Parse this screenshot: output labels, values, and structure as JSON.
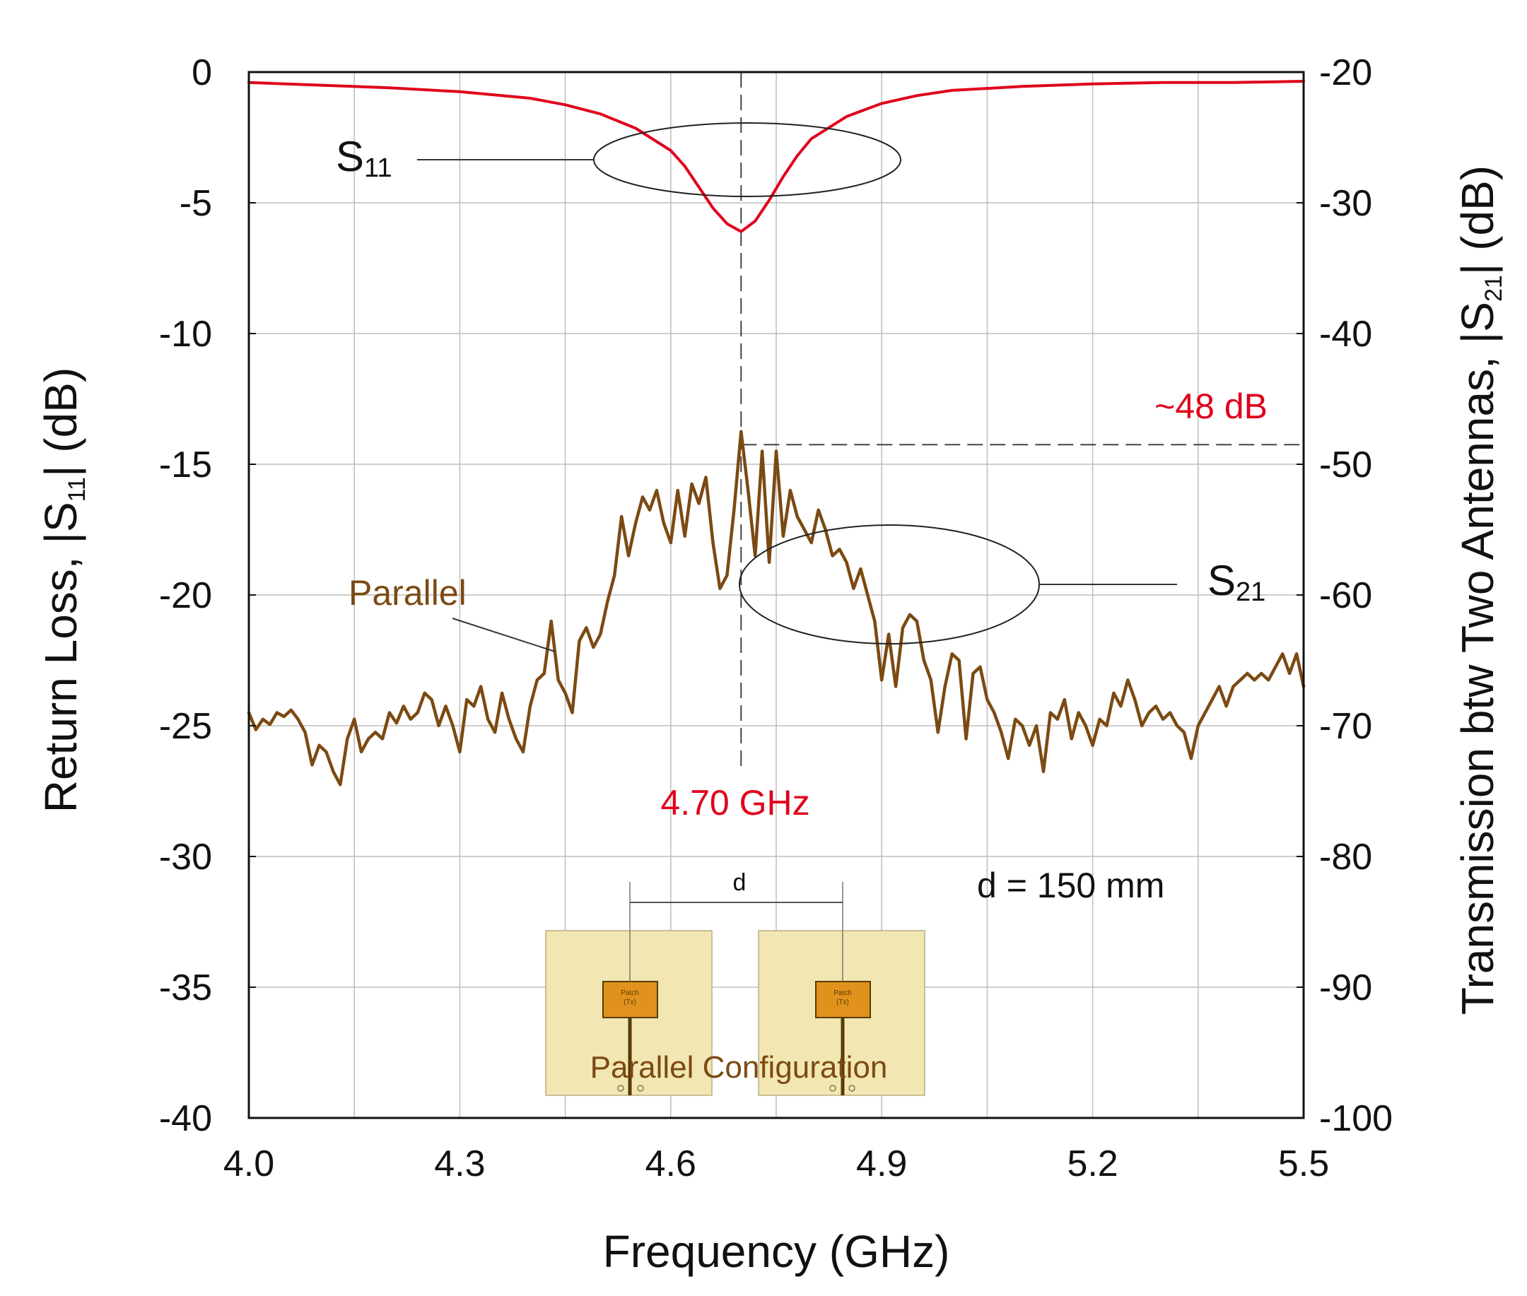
{
  "chart_data": {
    "type": "line",
    "title": "",
    "xlabel": "Frequency (GHz)",
    "ylabel_left": {
      "main": "Return Loss, |S",
      "sub": "11",
      "tail": "| (dB)"
    },
    "ylabel_right": {
      "main": "Transmission btw Two Antennas, |S",
      "sub": "21",
      "tail": "| (dB)"
    },
    "xlim": [
      4.0,
      5.5
    ],
    "ylim_left": [
      -40,
      0
    ],
    "ylim_right": [
      -100,
      -20
    ],
    "grid": true,
    "x_ticks": [
      "4.0",
      "4.3",
      "4.6",
      "4.9",
      "5.2",
      "5.5"
    ],
    "y_left_ticks": [
      "0",
      "-5",
      "-10",
      "-15",
      "-20",
      "-25",
      "-30",
      "-35",
      "-40"
    ],
    "y_right_ticks": [
      "-20",
      "-30",
      "-40",
      "-50",
      "-60",
      "-70",
      "-80",
      "-90",
      "-100"
    ],
    "series": [
      {
        "name": "S11",
        "axis": "left",
        "color": "#e0001b",
        "x": [
          4.0,
          4.1,
          4.2,
          4.3,
          4.4,
          4.45,
          4.5,
          4.55,
          4.6,
          4.62,
          4.64,
          4.66,
          4.68,
          4.7,
          4.72,
          4.74,
          4.76,
          4.78,
          4.8,
          4.85,
          4.9,
          4.95,
          5.0,
          5.1,
          5.2,
          5.3,
          5.4,
          5.5
        ],
        "values": [
          -0.4,
          -0.5,
          -0.6,
          -0.75,
          -1.0,
          -1.25,
          -1.6,
          -2.15,
          -3.0,
          -3.6,
          -4.4,
          -5.2,
          -5.8,
          -6.1,
          -5.7,
          -4.9,
          -4.0,
          -3.2,
          -2.55,
          -1.7,
          -1.2,
          -0.9,
          -0.7,
          -0.55,
          -0.45,
          -0.4,
          -0.4,
          -0.35
        ]
      },
      {
        "name": "S21 (Parallel)",
        "axis": "right",
        "color": "#7b4a12",
        "x": [
          4.0,
          4.01,
          4.02,
          4.03,
          4.04,
          4.05,
          4.06,
          4.07,
          4.08,
          4.09,
          4.1,
          4.11,
          4.12,
          4.13,
          4.14,
          4.15,
          4.16,
          4.17,
          4.18,
          4.19,
          4.2,
          4.21,
          4.22,
          4.23,
          4.24,
          4.25,
          4.26,
          4.27,
          4.28,
          4.29,
          4.3,
          4.31,
          4.32,
          4.33,
          4.34,
          4.35,
          4.36,
          4.37,
          4.38,
          4.39,
          4.4,
          4.41,
          4.42,
          4.43,
          4.44,
          4.45,
          4.46,
          4.47,
          4.48,
          4.49,
          4.5,
          4.51,
          4.52,
          4.53,
          4.54,
          4.55,
          4.56,
          4.57,
          4.58,
          4.59,
          4.6,
          4.61,
          4.62,
          4.63,
          4.64,
          4.65,
          4.66,
          4.67,
          4.68,
          4.69,
          4.7,
          4.71,
          4.72,
          4.73,
          4.74,
          4.75,
          4.76,
          4.77,
          4.78,
          4.79,
          4.8,
          4.81,
          4.82,
          4.83,
          4.84,
          4.85,
          4.86,
          4.87,
          4.88,
          4.89,
          4.9,
          4.91,
          4.92,
          4.93,
          4.94,
          4.95,
          4.96,
          4.97,
          4.98,
          4.99,
          5.0,
          5.01,
          5.02,
          5.03,
          5.04,
          5.05,
          5.06,
          5.07,
          5.08,
          5.09,
          5.1,
          5.11,
          5.12,
          5.13,
          5.14,
          5.15,
          5.16,
          5.17,
          5.18,
          5.19,
          5.2,
          5.21,
          5.22,
          5.23,
          5.24,
          5.25,
          5.26,
          5.27,
          5.28,
          5.29,
          5.3,
          5.31,
          5.32,
          5.33,
          5.34,
          5.35,
          5.36,
          5.37,
          5.38,
          5.39,
          5.4,
          5.41,
          5.42,
          5.43,
          5.44,
          5.45,
          5.46,
          5.47,
          5.48,
          5.49,
          5.5
        ],
        "values": [
          -69.0,
          -70.3,
          -69.5,
          -69.9,
          -69.0,
          -69.3,
          -68.8,
          -69.5,
          -70.5,
          -73.0,
          -71.5,
          -72.0,
          -73.5,
          -74.5,
          -71.0,
          -69.5,
          -72.0,
          -71.0,
          -70.5,
          -71.0,
          -69.0,
          -69.8,
          -68.5,
          -69.5,
          -69.0,
          -67.5,
          -68.0,
          -70.0,
          -68.5,
          -70.0,
          -72.0,
          -68.0,
          -68.5,
          -67.0,
          -69.5,
          -70.5,
          -67.5,
          -69.5,
          -71.0,
          -72.0,
          -68.5,
          -66.5,
          -66.0,
          -62.0,
          -66.5,
          -67.5,
          -69.0,
          -63.5,
          -62.5,
          -64.0,
          -63.0,
          -60.5,
          -58.5,
          -54.0,
          -57.0,
          -54.5,
          -52.5,
          -53.5,
          -52.0,
          -54.5,
          -56.0,
          -52.0,
          -55.5,
          -51.5,
          -53.0,
          -51.0,
          -56.0,
          -59.5,
          -58.5,
          -53.5,
          -47.5,
          -52.0,
          -57.0,
          -49.0,
          -57.5,
          -49.0,
          -55.5,
          -52.0,
          -54.0,
          -55.0,
          -56.0,
          -53.5,
          -55.0,
          -57.0,
          -56.5,
          -57.5,
          -59.5,
          -58.0,
          -60.0,
          -62.0,
          -66.5,
          -63.0,
          -67.0,
          -62.5,
          -61.5,
          -62.0,
          -65.0,
          -66.5,
          -70.5,
          -67.0,
          -64.5,
          -65.0,
          -71.0,
          -66.0,
          -65.5,
          -68.0,
          -69.0,
          -70.5,
          -72.5,
          -69.5,
          -70.0,
          -71.5,
          -70.0,
          -73.5,
          -69.0,
          -69.5,
          -68.0,
          -71.0,
          -69.0,
          -70.0,
          -71.5,
          -69.5,
          -70.0,
          -67.5,
          -68.5,
          -66.5,
          -68.0,
          -70.0,
          -69.0,
          -68.5,
          -69.5,
          -69.0,
          -70.0,
          -70.5,
          -72.5,
          -70.0,
          -69.0,
          -68.0,
          -67.0,
          -68.5,
          -67.0,
          -66.5,
          -66.0,
          -66.5,
          -66.0,
          -66.5,
          -65.5,
          -64.5,
          -66.0,
          -64.5,
          -67.0
        ]
      }
    ],
    "annotations": {
      "s11_label": "S",
      "s11_sub": "11",
      "s21_label": "S",
      "s21_sub": "21",
      "parallel_label": "Parallel",
      "freq_marker": "4.70 GHz",
      "freq_marker_x": 4.7,
      "level_label": "~48 dB",
      "level_value_right": -48.5,
      "distance_text": "d = 150 mm",
      "inset_d": "d",
      "inset_caption": "Parallel Configuration",
      "inset_patch_text": "Patch",
      "inset_patch_sub": "(Tx)"
    }
  }
}
